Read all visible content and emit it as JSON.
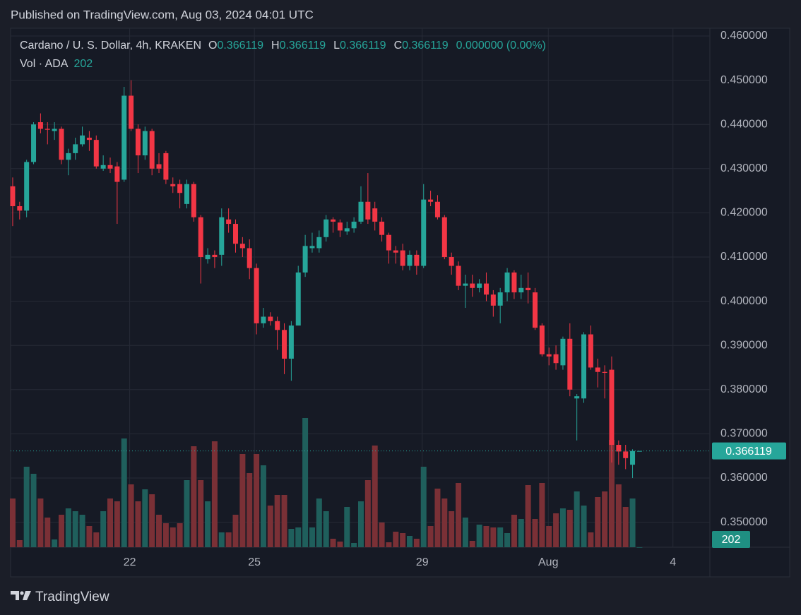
{
  "header": "Published on TradingView.com, Aug 03, 2024 04:01 UTC",
  "footer": "TradingView",
  "chart_data": {
    "type": "candlestick",
    "title": "Cardano / U. S. Dollar, 4h, KRAKEN",
    "legend": [
      {
        "key": "O",
        "value": 0.366119
      },
      {
        "key": "H",
        "value": 0.366119
      },
      {
        "key": "L",
        "value": 0.366119
      },
      {
        "key": "C",
        "value": 0.366119
      }
    ],
    "change_label": "0.000000 (0.00%)",
    "volume_title": "Vol · ADA",
    "up_color": "#26a69a",
    "down_color": "#f23645",
    "volume_up_color": "#1f5f5c",
    "volume_down_color": "#7a3036",
    "grid": true,
    "ylim": [
      0.34434,
      0.46176
    ],
    "yticks": [
      {
        "value": 0.35,
        "label": "0.350000"
      },
      {
        "value": 0.36,
        "label": "0.360000"
      },
      {
        "value": 0.37,
        "label": "0.370000"
      },
      {
        "value": 0.38,
        "label": "0.380000"
      },
      {
        "value": 0.39,
        "label": "0.390000"
      },
      {
        "value": 0.4,
        "label": "0.400000"
      },
      {
        "value": 0.41,
        "label": "0.410000"
      },
      {
        "value": 0.42,
        "label": "0.420000"
      },
      {
        "value": 0.43,
        "label": "0.430000"
      },
      {
        "value": 0.44,
        "label": "0.440000"
      },
      {
        "value": 0.45,
        "label": "0.450000"
      },
      {
        "value": 0.46,
        "label": "0.460000"
      }
    ],
    "xlim": [
      -0.3,
      100.1
    ],
    "xticks": [
      {
        "value": 16.8,
        "label": "22"
      },
      {
        "value": 34.7,
        "label": "25"
      },
      {
        "value": 58.8,
        "label": "29"
      },
      {
        "value": 76.9,
        "label": "Aug"
      },
      {
        "value": 94.8,
        "label": "4"
      }
    ],
    "volume_lim": [
      0,
      7350000
    ],
    "open": [
      0.426,
      0.4215,
      0.4205,
      0.4315,
      0.4405,
      0.439,
      0.4385,
      0.439,
      0.432,
      0.4335,
      0.4355,
      0.437,
      0.4365,
      0.43,
      0.4308,
      0.4305,
      0.4275,
      0.4465,
      0.439,
      0.433,
      0.4385,
      0.431,
      0.4335,
      0.4265,
      0.4265,
      0.422,
      0.4265,
      0.419,
      0.4095,
      0.4105,
      0.4105,
      0.4185,
      0.4175,
      0.413,
      0.412,
      0.4075,
      0.395,
      0.3965,
      0.3955,
      0.3935,
      0.387,
      0.3945,
      0.4065,
      0.412,
      0.412,
      0.4145,
      0.4185,
      0.4178,
      0.4158,
      0.4165,
      0.418,
      0.4225,
      0.421,
      0.418,
      0.415,
      0.4115,
      0.4115,
      0.408,
      0.4105,
      0.408,
      0.423,
      0.4225,
      0.419,
      0.41,
      0.408,
      0.4035,
      0.404,
      0.403,
      0.404,
      0.4015,
      0.399,
      0.402,
      0.4065,
      0.402,
      0.403,
      0.402,
      0.3945,
      0.388,
      0.388,
      0.3855,
      0.3915,
      0.378,
      0.378,
      0.3925,
      0.385,
      0.384,
      0.3845,
      0.3675,
      0.366,
      0.363,
      0.366119
    ],
    "high": [
      0.428,
      0.4225,
      0.432,
      0.4405,
      0.4425,
      0.4405,
      0.4405,
      0.4395,
      0.4345,
      0.437,
      0.4395,
      0.4385,
      0.4375,
      0.433,
      0.4325,
      0.4315,
      0.4485,
      0.45,
      0.44,
      0.4395,
      0.439,
      0.4335,
      0.434,
      0.428,
      0.4275,
      0.4275,
      0.427,
      0.4195,
      0.412,
      0.4115,
      0.421,
      0.421,
      0.4185,
      0.4145,
      0.414,
      0.4085,
      0.3985,
      0.3975,
      0.3965,
      0.395,
      0.3955,
      0.408,
      0.415,
      0.4155,
      0.416,
      0.4195,
      0.419,
      0.4185,
      0.418,
      0.419,
      0.426,
      0.429,
      0.4225,
      0.419,
      0.4155,
      0.4125,
      0.413,
      0.4115,
      0.4115,
      0.4265,
      0.425,
      0.424,
      0.4195,
      0.411,
      0.409,
      0.406,
      0.406,
      0.405,
      0.4065,
      0.4025,
      0.403,
      0.4075,
      0.407,
      0.406,
      0.4065,
      0.403,
      0.395,
      0.3895,
      0.39,
      0.392,
      0.395,
      0.379,
      0.393,
      0.3945,
      0.387,
      0.3855,
      0.3875,
      0.3685,
      0.3675,
      0.3665,
      0.366119
    ],
    "low": [
      0.417,
      0.4185,
      0.419,
      0.431,
      0.438,
      0.4355,
      0.4365,
      0.431,
      0.4285,
      0.432,
      0.435,
      0.434,
      0.43,
      0.4295,
      0.429,
      0.4175,
      0.427,
      0.4385,
      0.429,
      0.432,
      0.4285,
      0.429,
      0.4265,
      0.4245,
      0.421,
      0.421,
      0.418,
      0.404,
      0.4085,
      0.4075,
      0.408,
      0.4155,
      0.411,
      0.41,
      0.405,
      0.3925,
      0.394,
      0.3945,
      0.389,
      0.3835,
      0.382,
      0.3945,
      0.4055,
      0.411,
      0.411,
      0.4135,
      0.4155,
      0.4145,
      0.415,
      0.4155,
      0.4175,
      0.4175,
      0.416,
      0.4135,
      0.4085,
      0.4085,
      0.407,
      0.407,
      0.406,
      0.4075,
      0.4215,
      0.4185,
      0.4095,
      0.406,
      0.4025,
      0.3985,
      0.401,
      0.402,
      0.4,
      0.3965,
      0.395,
      0.4,
      0.4005,
      0.4005,
      0.3995,
      0.3935,
      0.3875,
      0.3855,
      0.3845,
      0.3845,
      0.3785,
      0.3685,
      0.377,
      0.3845,
      0.3805,
      0.378,
      0.3635,
      0.363,
      0.362,
      0.36,
      0.366119
    ],
    "close": [
      0.4215,
      0.4205,
      0.4315,
      0.44,
      0.439,
      0.4388,
      0.439,
      0.432,
      0.4335,
      0.4355,
      0.4375,
      0.4365,
      0.4305,
      0.4308,
      0.43,
      0.427,
      0.4465,
      0.439,
      0.433,
      0.4385,
      0.43,
      0.43,
      0.4275,
      0.426,
      0.4245,
      0.4265,
      0.419,
      0.41,
      0.4105,
      0.41,
      0.419,
      0.4175,
      0.413,
      0.412,
      0.4075,
      0.395,
      0.3965,
      0.3955,
      0.3935,
      0.387,
      0.3945,
      0.4065,
      0.4125,
      0.4125,
      0.4145,
      0.4185,
      0.418,
      0.416,
      0.4165,
      0.418,
      0.4225,
      0.4185,
      0.418,
      0.415,
      0.4115,
      0.411,
      0.408,
      0.4105,
      0.408,
      0.423,
      0.4225,
      0.419,
      0.41,
      0.408,
      0.4035,
      0.404,
      0.403,
      0.404,
      0.4015,
      0.399,
      0.402,
      0.4065,
      0.402,
      0.403,
      0.4025,
      0.394,
      0.388,
      0.3875,
      0.386,
      0.3915,
      0.38,
      0.3785,
      0.3925,
      0.385,
      0.384,
      0.3838,
      0.3675,
      0.366,
      0.3645,
      0.366119,
      0.366119
    ],
    "volume": [
      690000,
      100000,
      1140000,
      1040000,
      690000,
      420000,
      110000,
      460000,
      550000,
      510000,
      460000,
      300000,
      210000,
      510000,
      690000,
      650000,
      1540000,
      890000,
      650000,
      820000,
      750000,
      460000,
      340000,
      280000,
      340000,
      950000,
      1430000,
      950000,
      650000,
      1500000,
      210000,
      210000,
      460000,
      1320000,
      1050000,
      1320000,
      1160000,
      590000,
      740000,
      740000,
      260000,
      280000,
      1830000,
      280000,
      690000,
      510000,
      120000,
      80000,
      570000,
      60000,
      650000,
      950000,
      1440000,
      350000,
      70000,
      220000,
      200000,
      160000,
      120000,
      1140000,
      300000,
      830000,
      690000,
      510000,
      910000,
      420000,
      90000,
      320000,
      300000,
      280000,
      280000,
      200000,
      460000,
      400000,
      880000,
      400000,
      910000,
      300000,
      480000,
      550000,
      530000,
      790000,
      590000,
      210000,
      710000,
      790000,
      1520000,
      890000,
      570000,
      690000,
      202
    ]
  }
}
